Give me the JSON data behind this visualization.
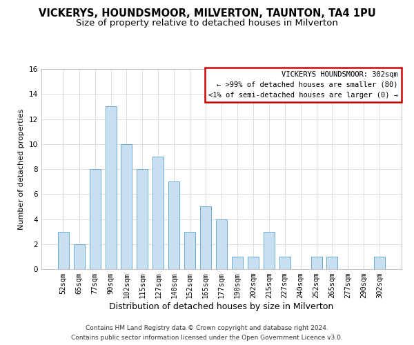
{
  "title": "VICKERYS, HOUNDSMOOR, MILVERTON, TAUNTON, TA4 1PU",
  "subtitle": "Size of property relative to detached houses in Milverton",
  "xlabel": "Distribution of detached houses by size in Milverton",
  "ylabel": "Number of detached properties",
  "bar_color": "#c8dff0",
  "bar_edge_color": "#6aaad4",
  "categories": [
    "52sqm",
    "65sqm",
    "77sqm",
    "90sqm",
    "102sqm",
    "115sqm",
    "127sqm",
    "140sqm",
    "152sqm",
    "165sqm",
    "177sqm",
    "190sqm",
    "202sqm",
    "215sqm",
    "227sqm",
    "240sqm",
    "252sqm",
    "265sqm",
    "277sqm",
    "290sqm",
    "302sqm"
  ],
  "values": [
    3,
    2,
    8,
    13,
    10,
    8,
    9,
    7,
    3,
    5,
    4,
    1,
    1,
    3,
    1,
    0,
    1,
    1,
    0,
    0,
    1
  ],
  "ylim": [
    0,
    16
  ],
  "yticks": [
    0,
    2,
    4,
    6,
    8,
    10,
    12,
    14,
    16
  ],
  "legend_title": "VICKERYS HOUNDSMOOR: 302sqm",
  "legend_line1": "← >99% of detached houses are smaller (80)",
  "legend_line2": "<1% of semi-detached houses are larger (0) →",
  "legend_box_color": "#ffffff",
  "legend_box_edge_color": "#cc0000",
  "footnote1": "Contains HM Land Registry data © Crown copyright and database right 2024.",
  "footnote2": "Contains public sector information licensed under the Open Government Licence v3.0.",
  "grid_color": "#d0d0d0",
  "background_color": "#ffffff",
  "title_fontsize": 10.5,
  "subtitle_fontsize": 9.5,
  "xlabel_fontsize": 9,
  "ylabel_fontsize": 8,
  "tick_fontsize": 7.5,
  "legend_fontsize": 7.5,
  "footnote_fontsize": 6.5
}
